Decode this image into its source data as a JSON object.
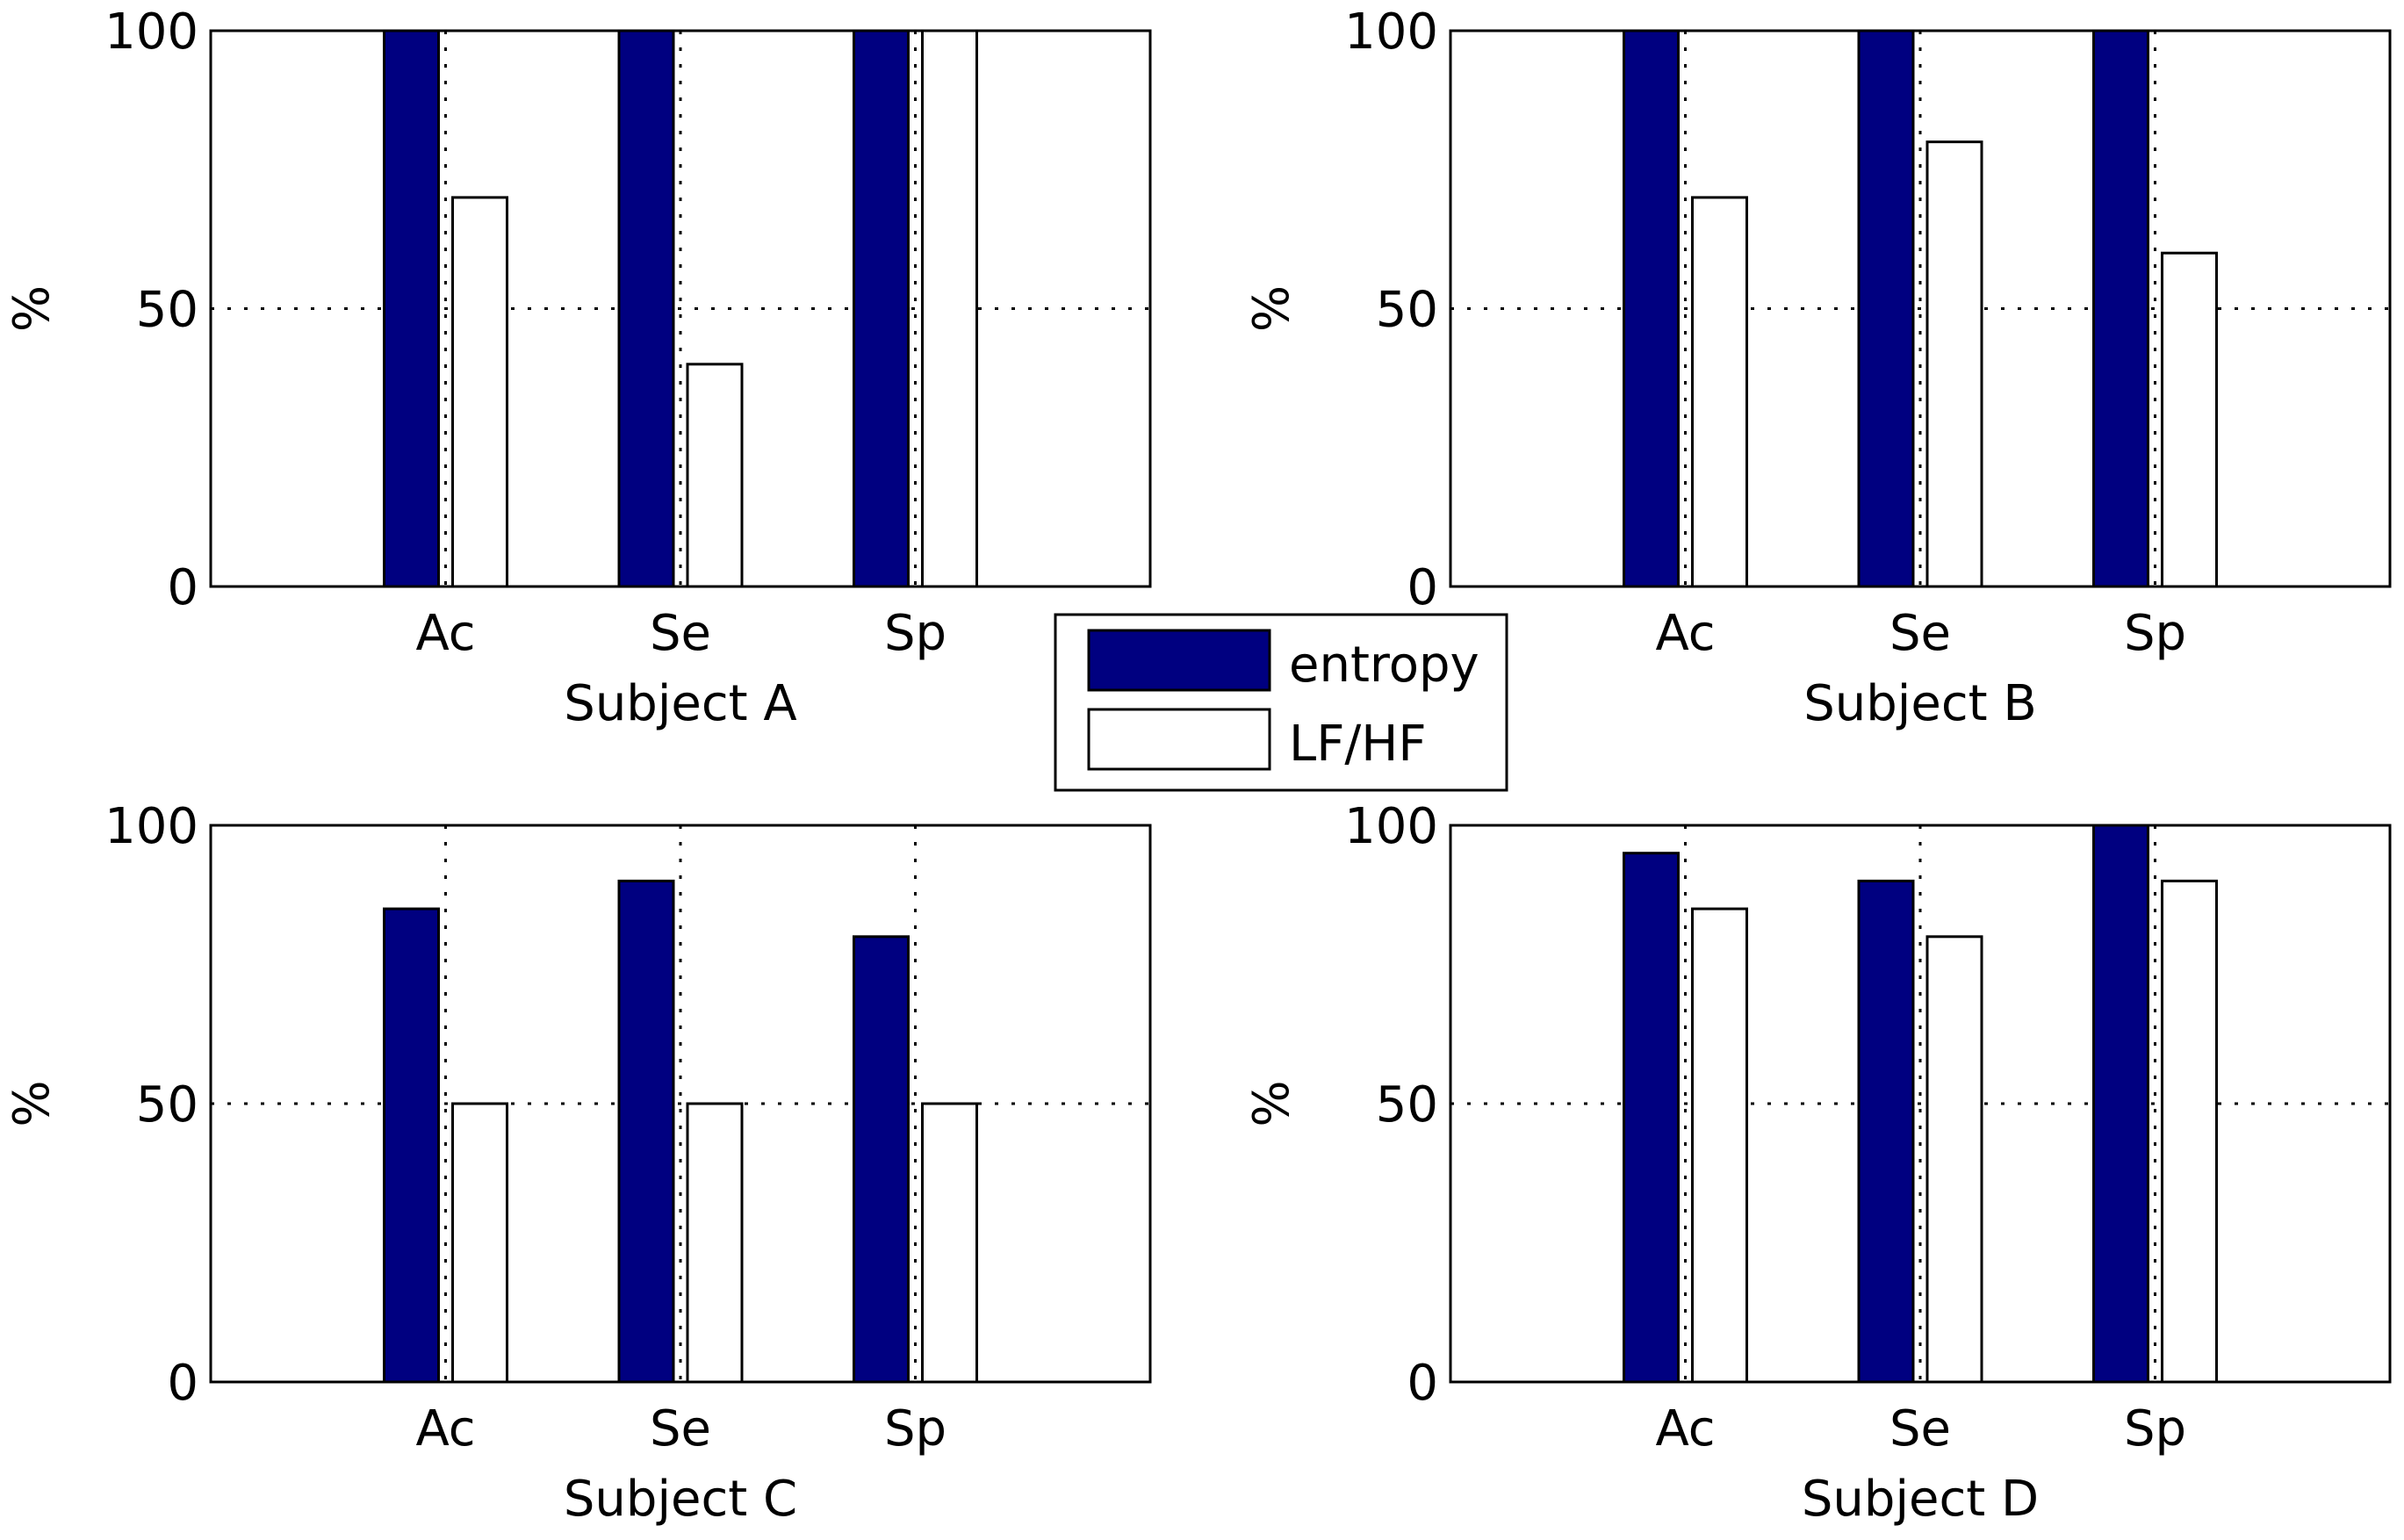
{
  "chart_data": [
    {
      "type": "bar",
      "title": "",
      "xlabel": "Subject A",
      "ylabel": "%",
      "ylim": [
        0,
        100
      ],
      "yticks": [
        0,
        50,
        100
      ],
      "grid": true,
      "categories": [
        "Ac",
        "Se",
        "Sp"
      ],
      "series": [
        {
          "name": "entropy",
          "values": [
            100,
            100,
            100
          ]
        },
        {
          "name": "LF/HF",
          "values": [
            70,
            40,
            100
          ]
        }
      ]
    },
    {
      "type": "bar",
      "title": "",
      "xlabel": "Subject B",
      "ylabel": "%",
      "ylim": [
        0,
        100
      ],
      "yticks": [
        0,
        50,
        100
      ],
      "grid": true,
      "categories": [
        "Ac",
        "Se",
        "Sp"
      ],
      "series": [
        {
          "name": "entropy",
          "values": [
            100,
            100,
            100
          ]
        },
        {
          "name": "LF/HF",
          "values": [
            70,
            80,
            60
          ]
        }
      ]
    },
    {
      "type": "bar",
      "title": "",
      "xlabel": "Subject C",
      "ylabel": "%",
      "ylim": [
        0,
        100
      ],
      "yticks": [
        0,
        50,
        100
      ],
      "grid": true,
      "categories": [
        "Ac",
        "Se",
        "Sp"
      ],
      "series": [
        {
          "name": "entropy",
          "values": [
            85,
            90,
            80
          ]
        },
        {
          "name": "LF/HF",
          "values": [
            50,
            50,
            50
          ]
        }
      ]
    },
    {
      "type": "bar",
      "title": "",
      "xlabel": "Subject D",
      "ylabel": "%",
      "ylim": [
        0,
        100
      ],
      "yticks": [
        0,
        50,
        100
      ],
      "grid": true,
      "categories": [
        "Ac",
        "Se",
        "Sp"
      ],
      "series": [
        {
          "name": "entropy",
          "values": [
            95,
            90,
            100
          ]
        },
        {
          "name": "LF/HF",
          "values": [
            85,
            80,
            90
          ]
        }
      ]
    }
  ],
  "legend": {
    "placement": "center",
    "entries": [
      {
        "name": "entropy",
        "color": "#000080"
      },
      {
        "name": "LF/HF",
        "color": "#ffffff"
      }
    ]
  },
  "colors": {
    "entropy": "#000080",
    "lfhf": "#ffffff",
    "axis": "#000000"
  }
}
